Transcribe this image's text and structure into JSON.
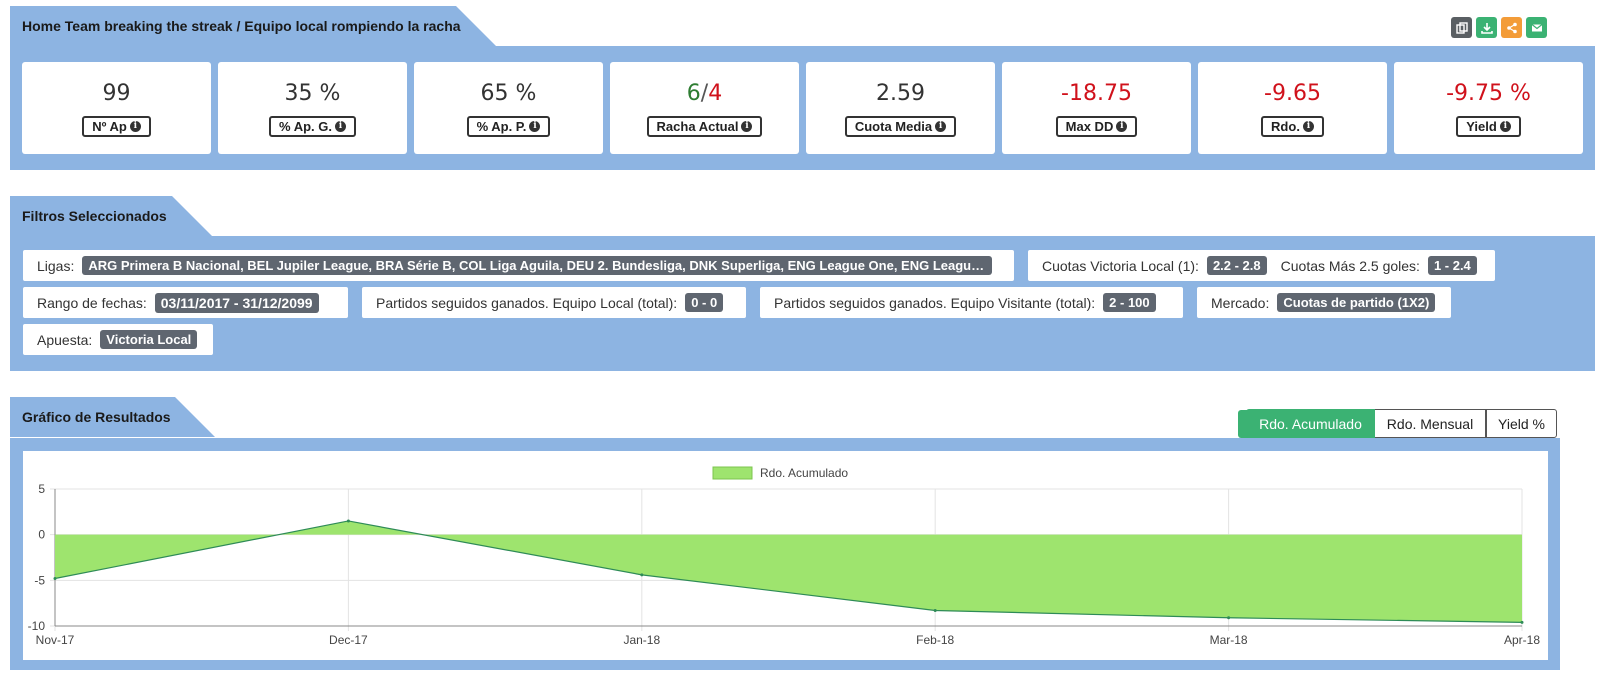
{
  "header": {
    "title": "Home Team breaking the streak / Equipo local rompiendo la racha",
    "icons": [
      "copy-icon",
      "download-icon",
      "share-icon",
      "mail-icon"
    ],
    "icon_colors": [
      "#5a5f63",
      "#3bb273",
      "#f39c38",
      "#3bb273"
    ]
  },
  "kpis": [
    {
      "value": "99",
      "label": "Nº Ap",
      "tone": "neutral"
    },
    {
      "value": "35 %",
      "label": "% Ap. G.",
      "tone": "neutral"
    },
    {
      "value": "65 %",
      "label": "% Ap. P.",
      "tone": "neutral"
    },
    {
      "value_pos": "6",
      "value_sep": "/",
      "value_neg": "4",
      "label": "Racha Actual",
      "tone": "split"
    },
    {
      "value": "2.59",
      "label": "Cuota Media",
      "tone": "neutral"
    },
    {
      "value": "-18.75",
      "label": "Max DD",
      "tone": "negative"
    },
    {
      "value": "-9.65",
      "label": "Rdo.",
      "tone": "negative"
    },
    {
      "value": "-9.75 %",
      "label": "Yield",
      "tone": "negative"
    }
  ],
  "filters": {
    "section_title": "Filtros Seleccionados",
    "ligas_label": "Ligas:",
    "ligas_value": "ARG Primera B Nacional, BEL Jupiler League, BRA Série B, COL Liga Aguila, DEU 2. Bundesliga, DNK Superliga, ENG League One, ENG League Two ...",
    "cuotas_local_label": "Cuotas Victoria Local (1):",
    "cuotas_local_value": "2.2 - 2.8",
    "cuotas_mas_label": "Cuotas Más 2.5 goles:",
    "cuotas_mas_value": "1 - 2.4",
    "fechas_label": "Rango de fechas:",
    "fechas_value": "03/11/2017 - 31/12/2099",
    "local_label": "Partidos seguidos ganados. Equipo Local (total):",
    "local_value": "0 - 0",
    "visitante_label": "Partidos seguidos ganados. Equipo Visitante (total):",
    "visitante_value": "2 - 100",
    "mercado_label": "Mercado:",
    "mercado_value": "Cuotas de partido (1X2)",
    "apuesta_label": "Apuesta:",
    "apuesta_value": "Victoria Local"
  },
  "results": {
    "section_title": "Gráfico de Resultados",
    "tabs": [
      "Rdo. Acumulado",
      "Rdo. Mensual",
      "Yield %"
    ],
    "active_tab": "Rdo. Acumulado"
  },
  "chart_data": {
    "type": "area",
    "x": [
      "Nov-17",
      "Dec-17",
      "Jan-18",
      "Feb-18",
      "Mar-18",
      "Apr-18"
    ],
    "series": [
      {
        "name": "Rdo. Acumulado",
        "values": [
          -4.8,
          1.5,
          -4.4,
          -8.3,
          -9.1,
          -9.6
        ],
        "fill": "#9ee46e",
        "stroke": "#2e8b57"
      }
    ],
    "yticks": [
      5,
      0,
      -5,
      -10
    ],
    "ylim": [
      -10,
      5
    ],
    "legend_position": "top-center",
    "grid": true
  }
}
